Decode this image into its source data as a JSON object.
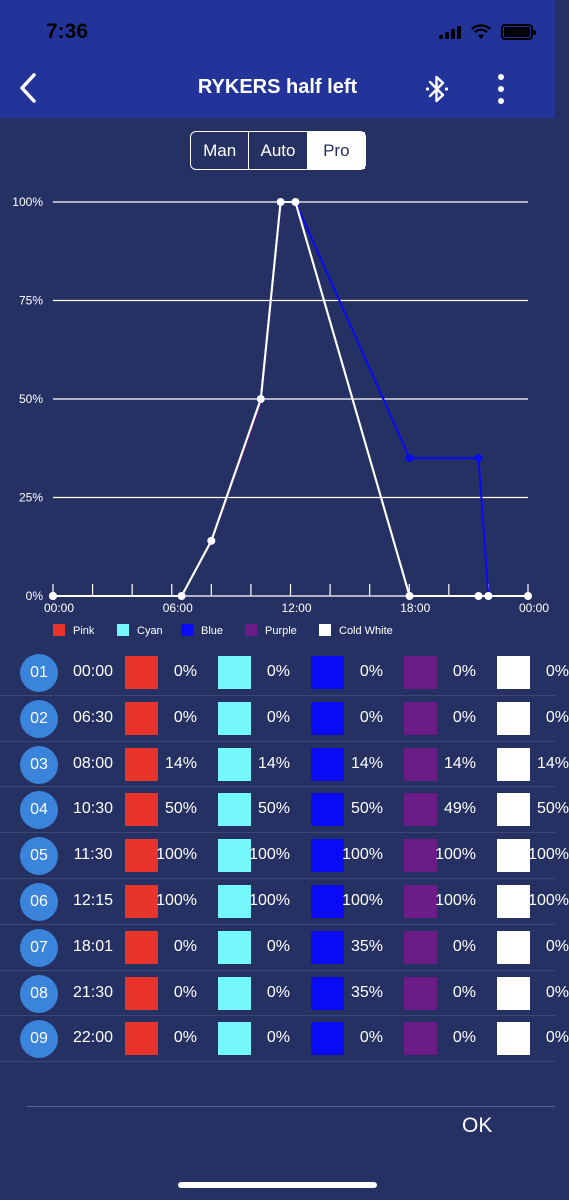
{
  "status": {
    "time": "7:36"
  },
  "header": {
    "title": "RYKERS half left",
    "back_icon": "chevron-left-icon",
    "bluetooth_icon": "bluetooth-icon",
    "more_icon": "more-vertical-icon"
  },
  "modes": [
    {
      "label": "Man",
      "active": false
    },
    {
      "label": "Auto",
      "active": false
    },
    {
      "label": "Pro",
      "active": true
    }
  ],
  "colors": {
    "Pink": "#e8342a",
    "Cyan": "#74f8fb",
    "Blue": "#0a0af5",
    "Purple": "#6b1c86",
    "Cold White": "#ffffff"
  },
  "chart_data": {
    "type": "line",
    "x_tick_labels": [
      "00:00",
      "06:00",
      "12:00",
      "18:00",
      "00:00"
    ],
    "y_tick_labels": [
      "100%",
      "75%",
      "50%",
      "25%",
      "0%"
    ],
    "xlim": [
      "00:00",
      "24:00"
    ],
    "ylim": [
      0,
      100
    ],
    "grid": true,
    "legend_position": "bottom",
    "x": [
      "00:00",
      "06:30",
      "08:00",
      "10:30",
      "11:30",
      "12:15",
      "18:01",
      "21:30",
      "22:00"
    ],
    "series": [
      {
        "name": "Pink",
        "values": [
          0,
          0,
          14,
          50,
          100,
          100,
          0,
          0,
          0
        ]
      },
      {
        "name": "Cyan",
        "values": [
          0,
          0,
          14,
          50,
          100,
          100,
          0,
          0,
          0
        ]
      },
      {
        "name": "Blue",
        "values": [
          0,
          0,
          14,
          50,
          100,
          100,
          35,
          35,
          0
        ]
      },
      {
        "name": "Purple",
        "values": [
          0,
          0,
          14,
          49,
          100,
          100,
          0,
          0,
          0
        ]
      },
      {
        "name": "Cold White",
        "values": [
          0,
          0,
          14,
          50,
          100,
          100,
          0,
          0,
          0
        ]
      }
    ]
  },
  "rows": [
    {
      "idx": "01",
      "time": "00:00",
      "values": [
        "0%",
        "0%",
        "0%",
        "0%",
        "0%"
      ]
    },
    {
      "idx": "02",
      "time": "06:30",
      "values": [
        "0%",
        "0%",
        "0%",
        "0%",
        "0%"
      ]
    },
    {
      "idx": "03",
      "time": "08:00",
      "values": [
        "14%",
        "14%",
        "14%",
        "14%",
        "14%"
      ]
    },
    {
      "idx": "04",
      "time": "10:30",
      "values": [
        "50%",
        "50%",
        "50%",
        "49%",
        "50%"
      ]
    },
    {
      "idx": "05",
      "time": "11:30",
      "values": [
        "100%",
        "100%",
        "100%",
        "100%",
        "100%"
      ]
    },
    {
      "idx": "06",
      "time": "12:15",
      "values": [
        "100%",
        "100%",
        "100%",
        "100%",
        "100%"
      ]
    },
    {
      "idx": "07",
      "time": "18:01",
      "values": [
        "0%",
        "0%",
        "35%",
        "0%",
        "0%"
      ]
    },
    {
      "idx": "08",
      "time": "21:30",
      "values": [
        "0%",
        "0%",
        "35%",
        "0%",
        "0%"
      ]
    },
    {
      "idx": "09",
      "time": "22:00",
      "values": [
        "0%",
        "0%",
        "0%",
        "0%",
        "0%"
      ]
    }
  ],
  "footer": {
    "ok_label": "OK"
  }
}
